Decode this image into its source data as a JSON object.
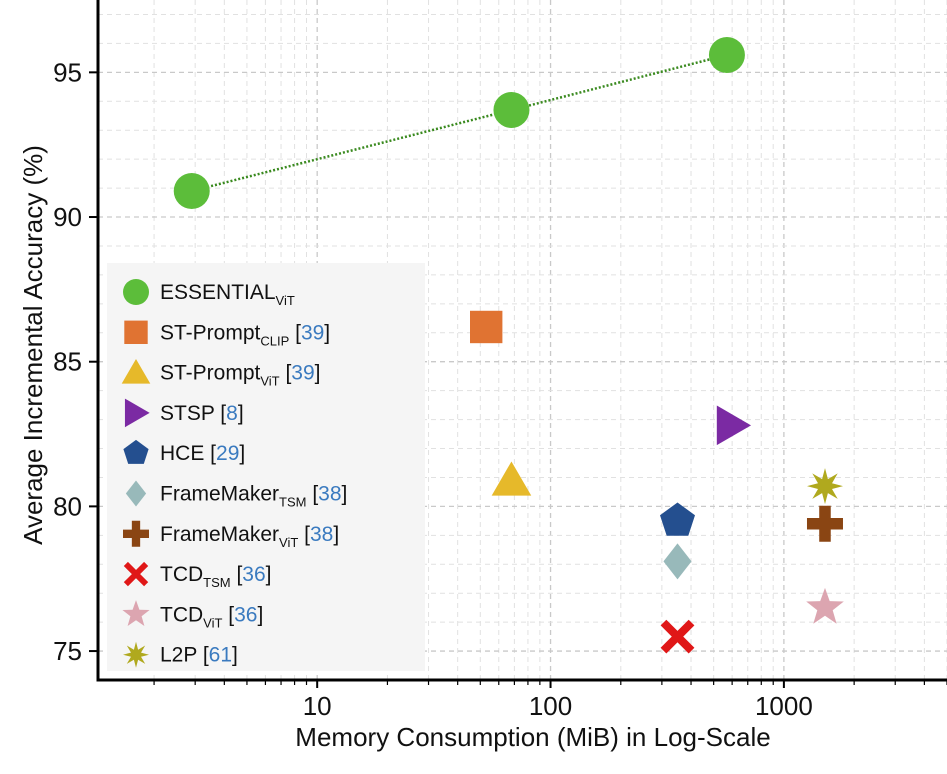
{
  "chart_data": {
    "type": "scatter",
    "title": "",
    "xlabel": "Memory Consumption (MiB) in Log-Scale",
    "ylabel": "Average Incremental Accuracy (%)",
    "xscale": "log",
    "xlim": [
      1.15,
      5000
    ],
    "ylim": [
      74,
      97.5
    ],
    "xticks": [
      10,
      100,
      1000
    ],
    "xtick_labels": [
      "10",
      "100",
      "1000"
    ],
    "yticks": [
      75,
      80,
      85,
      90,
      95
    ],
    "ytick_labels": [
      "75",
      "80",
      "85",
      "90",
      "95"
    ],
    "grid": true,
    "legend_position": "left-middle",
    "series": [
      {
        "name": "ESSENTIAL",
        "sub": "ViT",
        "ref": "",
        "color": "#5cbd3a",
        "marker": "circle",
        "line": true,
        "line_color": "#3a8a1f",
        "x": [
          2.9,
          68,
          570
        ],
        "y": [
          90.9,
          93.7,
          95.6
        ]
      },
      {
        "name": "ST-Prompt",
        "sub": "CLIP",
        "ref": "39",
        "color": "#e07332",
        "marker": "square",
        "line": false,
        "x": [
          53
        ],
        "y": [
          86.2
        ]
      },
      {
        "name": "ST-Prompt",
        "sub": "ViT",
        "ref": "39",
        "color": "#e6b92a",
        "marker": "triangle-up",
        "line": false,
        "x": [
          68
        ],
        "y": [
          80.9
        ]
      },
      {
        "name": "STSP",
        "sub": "",
        "ref": "8",
        "color": "#7b2aa3",
        "marker": "triangle-right",
        "line": false,
        "x": [
          600
        ],
        "y": [
          82.8
        ]
      },
      {
        "name": "HCE",
        "sub": "",
        "ref": "29",
        "color": "#244f8f",
        "marker": "pentagon",
        "line": false,
        "x": [
          350
        ],
        "y": [
          79.5
        ]
      },
      {
        "name": "FrameMaker",
        "sub": "TSM",
        "ref": "38",
        "color": "#98b9ba",
        "marker": "diamond",
        "line": false,
        "x": [
          350
        ],
        "y": [
          78.1
        ]
      },
      {
        "name": "FrameMaker",
        "sub": "ViT",
        "ref": "38",
        "color": "#8a4513",
        "marker": "plus",
        "line": false,
        "x": [
          1500
        ],
        "y": [
          79.4
        ]
      },
      {
        "name": "TCD",
        "sub": "TSM",
        "ref": "36",
        "color": "#e01717",
        "marker": "x",
        "line": false,
        "x": [
          350
        ],
        "y": [
          75.5
        ]
      },
      {
        "name": "TCD",
        "sub": "ViT",
        "ref": "36",
        "color": "#dca5b0",
        "marker": "star",
        "line": false,
        "x": [
          1500
        ],
        "y": [
          76.5
        ]
      },
      {
        "name": "L2P",
        "sub": "",
        "ref": "61",
        "color": "#b0a91e",
        "marker": "star8",
        "line": false,
        "x": [
          1500
        ],
        "y": [
          80.7
        ]
      }
    ]
  }
}
